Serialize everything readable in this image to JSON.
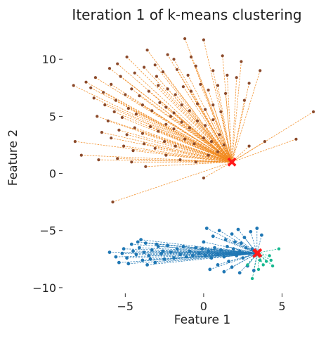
{
  "chart_data": {
    "type": "scatter",
    "title": "Iteration 1 of k-means clustering",
    "xlabel": "Feature 1",
    "ylabel": "Feature 2",
    "xlim": [
      -8.6,
      7.4
    ],
    "ylim": [
      -10.5,
      12.6
    ],
    "xticks": [
      -5,
      0,
      5
    ],
    "xtick_labels": [
      "−5",
      "0",
      "5"
    ],
    "yticks": [
      -10,
      -5,
      0,
      5,
      10
    ],
    "ytick_labels": [
      "−10",
      "−5",
      "0",
      "5",
      "10"
    ],
    "grid": false,
    "legend": "none",
    "colors": {
      "upper_points": "#8b4a2b",
      "upper_lines": "#f28a1e",
      "lower_points": "#1f77b4",
      "lower_lines": "#1f77b4",
      "small_points": "#17b890",
      "small_lines": "#17b890",
      "centroid": "#ff1a1a"
    },
    "centroids": [
      {
        "x": 1.8,
        "y": 1.0
      },
      {
        "x": 3.4,
        "y": -7.0
      },
      {
        "x": 3.45,
        "y": -6.95
      }
    ],
    "series": [
      {
        "values": [
          [
            -8.3,
            7.7
          ],
          [
            -6.9,
            8.4
          ],
          [
            -5.5,
            9.6
          ],
          [
            -4.9,
            10.2
          ],
          [
            -3.6,
            10.8
          ],
          [
            -2.3,
            10.4
          ],
          [
            -1.9,
            10.0
          ],
          [
            -0.8,
            10.2
          ],
          [
            0.0,
            11.7
          ],
          [
            1.2,
            10.3
          ],
          [
            2.4,
            9.8
          ],
          [
            3.6,
            9.0
          ],
          [
            -1.2,
            11.8
          ],
          [
            -7.5,
            8.0
          ],
          [
            -7.2,
            7.5
          ],
          [
            -6.4,
            7.1
          ],
          [
            -5.9,
            7.8
          ],
          [
            -5.3,
            8.5
          ],
          [
            -4.4,
            8.8
          ],
          [
            -3.8,
            9.3
          ],
          [
            -3.1,
            9.5
          ],
          [
            -2.6,
            8.9
          ],
          [
            -1.7,
            9.1
          ],
          [
            -1.0,
            8.6
          ],
          [
            -0.5,
            9.4
          ],
          [
            0.6,
            9.0
          ],
          [
            1.5,
            8.6
          ],
          [
            2.1,
            8.4
          ],
          [
            2.9,
            7.9
          ],
          [
            -7.0,
            6.6
          ],
          [
            -6.3,
            6.0
          ],
          [
            -5.6,
            6.4
          ],
          [
            -5.0,
            6.9
          ],
          [
            -4.6,
            7.4
          ],
          [
            -4.1,
            6.8
          ],
          [
            -3.5,
            7.2
          ],
          [
            -2.9,
            7.7
          ],
          [
            -2.3,
            7.4
          ],
          [
            -1.8,
            6.9
          ],
          [
            -1.3,
            7.6
          ],
          [
            -0.8,
            7.2
          ],
          [
            -0.2,
            7.8
          ],
          [
            0.3,
            7.3
          ],
          [
            0.9,
            7.7
          ],
          [
            1.4,
            7.0
          ],
          [
            2.6,
            6.4
          ],
          [
            -6.8,
            5.0
          ],
          [
            -6.1,
            4.6
          ],
          [
            -5.7,
            5.4
          ],
          [
            -5.2,
            4.9
          ],
          [
            -4.8,
            5.7
          ],
          [
            -4.3,
            5.2
          ],
          [
            -3.9,
            6.0
          ],
          [
            -3.3,
            5.5
          ],
          [
            -2.8,
            6.2
          ],
          [
            -2.4,
            5.8
          ],
          [
            -1.9,
            5.3
          ],
          [
            -1.4,
            6.0
          ],
          [
            -0.9,
            5.5
          ],
          [
            -0.4,
            6.1
          ],
          [
            0.1,
            5.6
          ],
          [
            0.6,
            6.0
          ],
          [
            1.1,
            5.4
          ],
          [
            -6.5,
            3.6
          ],
          [
            -5.9,
            3.1
          ],
          [
            -5.4,
            3.8
          ],
          [
            -4.9,
            3.4
          ],
          [
            -4.4,
            4.0
          ],
          [
            -3.9,
            3.5
          ],
          [
            -3.4,
            4.1
          ],
          [
            -2.9,
            3.7
          ],
          [
            -2.4,
            4.3
          ],
          [
            -1.9,
            3.9
          ],
          [
            -1.4,
            4.5
          ],
          [
            -0.9,
            4.0
          ],
          [
            -0.4,
            4.6
          ],
          [
            0.1,
            4.2
          ],
          [
            0.6,
            4.7
          ],
          [
            -5.1,
            2.4
          ],
          [
            -4.5,
            2.0
          ],
          [
            -3.8,
            2.6
          ],
          [
            -3.1,
            2.2
          ],
          [
            -2.5,
            2.8
          ],
          [
            -1.8,
            2.4
          ],
          [
            -1.2,
            3.0
          ],
          [
            -0.6,
            2.6
          ],
          [
            0.0,
            3.1
          ],
          [
            0.5,
            2.8
          ],
          [
            1.0,
            3.4
          ],
          [
            1.3,
            2.5
          ],
          [
            -8.2,
            2.8
          ],
          [
            -7.8,
            1.6
          ],
          [
            -6.7,
            1.2
          ],
          [
            -5.5,
            1.3
          ],
          [
            -4.6,
            1.0
          ],
          [
            -2.4,
            1.6
          ],
          [
            -1.5,
            1.2
          ],
          [
            -0.5,
            1.0
          ],
          [
            -3.7,
            0.6
          ],
          [
            0.0,
            -0.4
          ],
          [
            -5.8,
            -2.5
          ],
          [
            0.3,
            1.6
          ],
          [
            2.9,
            2.4
          ],
          [
            3.9,
            2.8
          ],
          [
            5.9,
            3.0
          ],
          [
            7.0,
            5.4
          ],
          [
            0.9,
            1.9
          ],
          [
            -2.1,
            5.0
          ],
          [
            -3.0,
            8.5
          ],
          [
            -6.0,
            9.2
          ]
        ]
      },
      {
        "values": [
          [
            -5.6,
            -7.3
          ],
          [
            -5.1,
            -6.6
          ],
          [
            -4.8,
            -7.9
          ],
          [
            -4.6,
            -6.2
          ],
          [
            -4.3,
            -7.1
          ],
          [
            -4.1,
            -6.5
          ],
          [
            -3.9,
            -7.6
          ],
          [
            -3.7,
            -6.1
          ],
          [
            -3.5,
            -7.2
          ],
          [
            -3.3,
            -6.7
          ],
          [
            -3.1,
            -7.8
          ],
          [
            -2.9,
            -6.4
          ],
          [
            -2.7,
            -7.0
          ],
          [
            -2.5,
            -7.5
          ],
          [
            -2.3,
            -6.3
          ],
          [
            -2.1,
            -6.9
          ],
          [
            -1.9,
            -7.4
          ],
          [
            -1.7,
            -6.6
          ],
          [
            -1.5,
            -7.1
          ],
          [
            -1.3,
            -6.4
          ],
          [
            -1.1,
            -7.3
          ],
          [
            -0.9,
            -6.8
          ],
          [
            -0.7,
            -7.2
          ],
          [
            -0.5,
            -6.5
          ],
          [
            -0.3,
            -7.0
          ],
          [
            -0.1,
            -6.6
          ],
          [
            0.1,
            -7.2
          ],
          [
            0.3,
            -6.8
          ],
          [
            0.5,
            -7.4
          ],
          [
            0.7,
            -6.5
          ],
          [
            0.9,
            -7.1
          ],
          [
            1.1,
            -6.7
          ],
          [
            1.3,
            -7.3
          ],
          [
            1.5,
            -6.4
          ],
          [
            1.7,
            -7.0
          ],
          [
            1.9,
            -6.6
          ],
          [
            2.1,
            -7.2
          ],
          [
            2.3,
            -6.8
          ],
          [
            2.5,
            -7.4
          ],
          [
            2.7,
            -6.5
          ],
          [
            2.9,
            -7.0
          ],
          [
            3.1,
            -6.6
          ],
          [
            -5.2,
            -7.0
          ],
          [
            -4.9,
            -7.4
          ],
          [
            -4.5,
            -6.8
          ],
          [
            -4.2,
            -6.0
          ],
          [
            -3.8,
            -6.9
          ],
          [
            -3.4,
            -7.5
          ],
          [
            -3.0,
            -6.2
          ],
          [
            -2.6,
            -6.8
          ],
          [
            0.2,
            -4.8
          ],
          [
            0.6,
            -5.5
          ],
          [
            1.0,
            -5.0
          ],
          [
            1.4,
            -5.8
          ],
          [
            1.8,
            -5.3
          ],
          [
            2.2,
            -4.9
          ],
          [
            2.6,
            -5.6
          ],
          [
            3.0,
            -5.1
          ],
          [
            3.4,
            -4.8
          ],
          [
            3.7,
            -5.4
          ],
          [
            0.4,
            -8.4
          ],
          [
            0.9,
            -8.0
          ],
          [
            1.3,
            -8.6
          ],
          [
            1.8,
            -8.2
          ],
          [
            2.3,
            -8.7
          ],
          [
            2.8,
            -8.1
          ],
          [
            3.2,
            -8.5
          ],
          [
            -6.0,
            -6.9
          ],
          [
            -5.4,
            -7.8
          ],
          [
            -4.0,
            -5.8
          ],
          [
            -3.6,
            -8.0
          ],
          [
            1.6,
            -7.7
          ],
          [
            2.0,
            -6.0
          ],
          [
            2.4,
            -6.1
          ],
          [
            0.0,
            -6.0
          ]
        ]
      },
      {
        "values": [
          [
            4.8,
            -6.6
          ],
          [
            4.2,
            -7.2
          ],
          [
            4.0,
            -7.7
          ],
          [
            3.8,
            -8.0
          ],
          [
            3.5,
            -8.4
          ],
          [
            3.1,
            -9.2
          ],
          [
            2.8,
            -8.0
          ],
          [
            4.3,
            -7.6
          ],
          [
            4.4,
            -8.1
          ],
          [
            3.6,
            -7.6
          ]
        ]
      }
    ]
  }
}
